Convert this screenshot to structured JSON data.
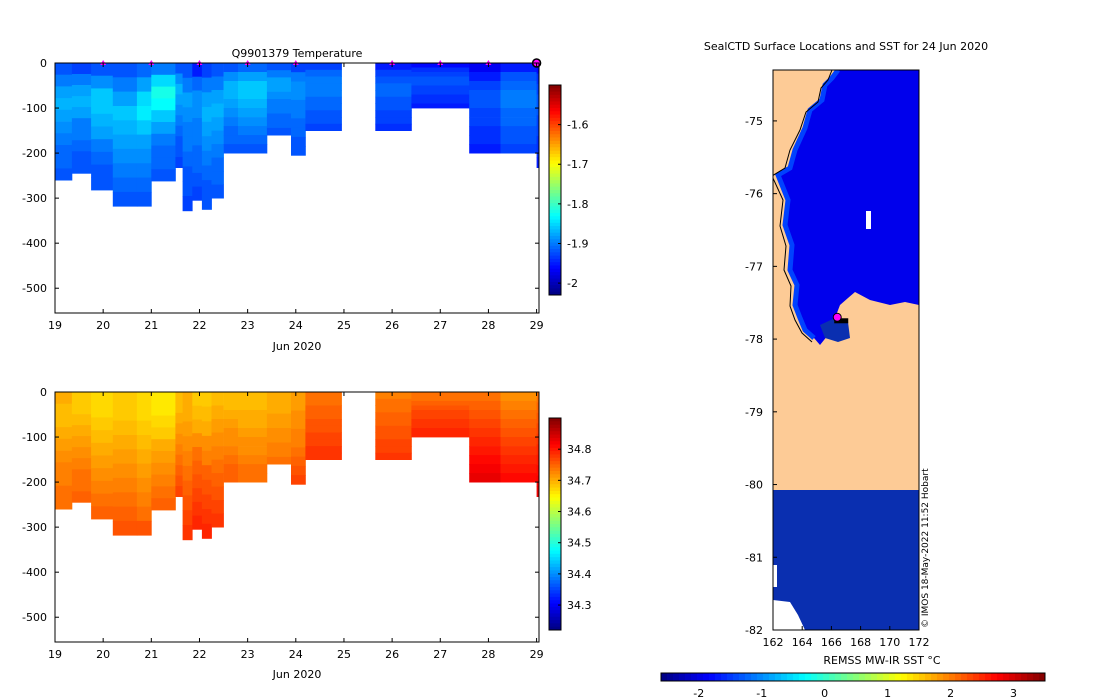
{
  "figure": {
    "credit": "© IMOS 18-May-2022 11:52 Hobart"
  },
  "colors": {
    "land": "#fdcb96",
    "ocean_deep": "#0a2fb0",
    "marker": "#ff00ff",
    "frame": "#000000"
  },
  "chart_data": [
    {
      "id": "temperature_section",
      "type": "heatmap",
      "title": "Q9901379  Temperature",
      "xlabel": "Jun 2020",
      "ylabel": "",
      "xlim": [
        19,
        29.05
      ],
      "ylim": [
        0,
        -555
      ],
      "x_ticks": [
        "19",
        "20",
        "21",
        "22",
        "23",
        "24",
        "25",
        "26",
        "27",
        "28",
        "29"
      ],
      "y_ticks": [
        0,
        -100,
        -200,
        -300,
        -400,
        -500
      ],
      "y_tick_labels": [
        "0",
        "-100",
        "-200",
        "-300",
        "-400",
        "-500"
      ],
      "colorbar": {
        "min": -2.03,
        "max": -1.5,
        "ticks": [
          -1.6,
          -1.7,
          -1.8,
          -1.9,
          -2.0
        ],
        "tick_labels": [
          "-1.6",
          "-1.7",
          "-1.8",
          "-1.9",
          "-2"
        ],
        "colormap": "jet"
      },
      "profile_markers_x": [
        20,
        21,
        22,
        23,
        24,
        26,
        27,
        28
      ],
      "latest_marker_x": 29,
      "profiles": [
        {
          "x0": 19.0,
          "x1": 19.35,
          "depth": -260,
          "values": [
            -1.92,
            -1.9,
            -1.88,
            -1.87,
            -1.88,
            -1.89,
            -1.9,
            -1.91,
            -1.91,
            -1.92
          ]
        },
        {
          "x0": 19.35,
          "x1": 19.75,
          "depth": -245,
          "values": [
            -1.93,
            -1.9,
            -1.88,
            -1.87,
            -1.88,
            -1.9,
            -1.9,
            -1.91,
            -1.92,
            -1.92
          ]
        },
        {
          "x0": 19.75,
          "x1": 20.2,
          "depth": -282,
          "values": [
            -1.92,
            -1.89,
            -1.86,
            -1.86,
            -1.87,
            -1.88,
            -1.9,
            -1.91,
            -1.92,
            -1.92
          ]
        },
        {
          "x0": 20.2,
          "x1": 20.7,
          "depth": -318,
          "values": [
            -1.92,
            -1.9,
            -1.88,
            -1.86,
            -1.87,
            -1.88,
            -1.89,
            -1.9,
            -1.91,
            -1.92
          ]
        },
        {
          "x0": 20.7,
          "x1": 21.0,
          "depth": -318,
          "values": [
            -1.91,
            -1.88,
            -1.85,
            -1.84,
            -1.86,
            -1.88,
            -1.89,
            -1.9,
            -1.91,
            -1.92
          ]
        },
        {
          "x0": 21.0,
          "x1": 21.5,
          "depth": -262,
          "values": [
            -1.9,
            -1.85,
            -1.82,
            -1.83,
            -1.86,
            -1.88,
            -1.9,
            -1.91,
            -1.91,
            -1.92
          ]
        },
        {
          "x0": 21.5,
          "x1": 21.65,
          "depth": -232,
          "values": [
            -1.92,
            -1.89,
            -1.87,
            -1.88,
            -1.89,
            -1.9,
            -1.91,
            -1.92,
            -1.92,
            -1.93
          ]
        },
        {
          "x0": 21.65,
          "x1": 21.85,
          "depth": -328,
          "values": [
            -1.92,
            -1.9,
            -1.88,
            -1.89,
            -1.9,
            -1.9,
            -1.91,
            -1.92,
            -1.92,
            -1.93
          ]
        },
        {
          "x0": 21.85,
          "x1": 22.05,
          "depth": -305,
          "values": [
            -1.95,
            -1.91,
            -1.89,
            -1.89,
            -1.9,
            -1.9,
            -1.91,
            -1.91,
            -1.92,
            -1.93
          ]
        },
        {
          "x0": 22.05,
          "x1": 22.25,
          "depth": -325,
          "values": [
            -1.93,
            -1.9,
            -1.88,
            -1.87,
            -1.88,
            -1.89,
            -1.9,
            -1.91,
            -1.92,
            -1.92
          ]
        },
        {
          "x0": 22.25,
          "x1": 22.5,
          "depth": -300,
          "values": [
            -1.92,
            -1.9,
            -1.88,
            -1.87,
            -1.88,
            -1.89,
            -1.9,
            -1.91,
            -1.91,
            -1.92
          ]
        },
        {
          "x0": 22.5,
          "x1": 22.8,
          "depth": -200,
          "values": [
            -1.92,
            -1.89,
            -1.87,
            -1.87,
            -1.88,
            -1.89,
            -1.9,
            -1.91,
            -1.91,
            -1.92
          ]
        },
        {
          "x0": 22.8,
          "x1": 23.4,
          "depth": -200,
          "values": [
            -1.91,
            -1.88,
            -1.86,
            -1.86,
            -1.87,
            -1.88,
            -1.89,
            -1.9,
            -1.91,
            -1.92
          ]
        },
        {
          "x0": 23.4,
          "x1": 23.9,
          "depth": -160,
          "values": [
            -1.92,
            -1.9,
            -1.88,
            -1.88,
            -1.89,
            -1.9,
            -1.9,
            -1.91,
            -1.91,
            -1.92
          ]
        },
        {
          "x0": 23.9,
          "x1": 24.2,
          "depth": -205,
          "values": [
            -1.93,
            -1.9,
            -1.89,
            -1.89,
            -1.9,
            -1.9,
            -1.91,
            -1.91,
            -1.92,
            -1.92
          ]
        },
        {
          "x0": 24.2,
          "x1": 24.95,
          "depth": -150,
          "values": [
            -1.93,
            -1.91,
            -1.9,
            -1.9,
            -1.9,
            -1.91,
            -1.91,
            -1.92,
            -1.92,
            -1.93
          ]
        },
        {
          "x0": 25.65,
          "x1": 26.4,
          "depth": -150,
          "values": [
            -1.95,
            -1.93,
            -1.92,
            -1.91,
            -1.91,
            -1.92,
            -1.92,
            -1.93,
            -1.93,
            -1.94
          ]
        },
        {
          "x0": 26.4,
          "x1": 27.6,
          "depth": -100,
          "values": [
            -1.96,
            -1.94,
            -1.93,
            -1.92,
            -1.92,
            -1.93,
            -1.93,
            -1.94,
            -1.94,
            -1.95
          ]
        },
        {
          "x0": 27.6,
          "x1": 28.25,
          "depth": -200,
          "values": [
            -1.97,
            -1.95,
            -1.93,
            -1.92,
            -1.92,
            -1.93,
            -1.93,
            -1.94,
            -1.94,
            -1.95
          ]
        },
        {
          "x0": 28.25,
          "x1": 29.0,
          "depth": -200,
          "values": [
            -1.95,
            -1.92,
            -1.91,
            -1.9,
            -1.9,
            -1.91,
            -1.91,
            -1.92,
            -1.92,
            -1.93
          ]
        },
        {
          "x0": 29.0,
          "x1": 29.05,
          "depth": -232,
          "values": [
            -1.96,
            -1.94,
            -1.93,
            -1.92,
            -1.92,
            -1.93,
            -1.93,
            -1.94,
            -1.94,
            -1.95
          ]
        }
      ]
    },
    {
      "id": "salinity_section",
      "type": "heatmap",
      "title": "",
      "xlabel": "Jun 2020",
      "ylabel": "",
      "xlim": [
        19,
        29.05
      ],
      "ylim": [
        0,
        -555
      ],
      "x_ticks": [
        "19",
        "20",
        "21",
        "22",
        "23",
        "24",
        "25",
        "26",
        "27",
        "28",
        "29"
      ],
      "y_ticks": [
        0,
        -100,
        -200,
        -300,
        -400,
        -500
      ],
      "y_tick_labels": [
        "0",
        "-100",
        "-200",
        "-300",
        "-400",
        "-500"
      ],
      "colorbar": {
        "min": 34.22,
        "max": 34.9,
        "ticks": [
          34.8,
          34.7,
          34.6,
          34.5,
          34.4,
          34.3
        ],
        "tick_labels": [
          "34.8",
          "34.7",
          "34.6",
          "34.5",
          "34.4",
          "34.3"
        ],
        "colormap": "jet"
      },
      "profiles": [
        {
          "x0": 19.0,
          "x1": 19.35,
          "depth": -260,
          "values": [
            34.7,
            34.69,
            34.69,
            34.7,
            34.71,
            34.72,
            34.73,
            34.73,
            34.74,
            34.74
          ]
        },
        {
          "x0": 19.35,
          "x1": 19.75,
          "depth": -245,
          "values": [
            34.68,
            34.68,
            34.69,
            34.7,
            34.71,
            34.72,
            34.73,
            34.74,
            34.74,
            34.75
          ]
        },
        {
          "x0": 19.75,
          "x1": 20.2,
          "depth": -282,
          "values": [
            34.67,
            34.67,
            34.68,
            34.69,
            34.7,
            34.71,
            34.72,
            34.73,
            34.74,
            34.75
          ]
        },
        {
          "x0": 20.2,
          "x1": 20.7,
          "depth": -318,
          "values": [
            34.68,
            34.68,
            34.69,
            34.7,
            34.71,
            34.72,
            34.73,
            34.74,
            34.75,
            34.76
          ]
        },
        {
          "x0": 20.7,
          "x1": 21.0,
          "depth": -318,
          "values": [
            34.67,
            34.67,
            34.68,
            34.69,
            34.7,
            34.71,
            34.72,
            34.73,
            34.74,
            34.76
          ]
        },
        {
          "x0": 21.0,
          "x1": 21.5,
          "depth": -262,
          "values": [
            34.66,
            34.66,
            34.67,
            34.68,
            34.7,
            34.71,
            34.72,
            34.73,
            34.74,
            34.75
          ]
        },
        {
          "x0": 21.5,
          "x1": 21.65,
          "depth": -232,
          "values": [
            34.69,
            34.69,
            34.7,
            34.71,
            34.72,
            34.73,
            34.74,
            34.75,
            34.76,
            34.77
          ]
        },
        {
          "x0": 21.65,
          "x1": 21.85,
          "depth": -328,
          "values": [
            34.7,
            34.7,
            34.71,
            34.72,
            34.73,
            34.74,
            34.75,
            34.76,
            34.77,
            34.78
          ]
        },
        {
          "x0": 21.85,
          "x1": 22.05,
          "depth": -305,
          "values": [
            34.68,
            34.69,
            34.7,
            34.72,
            34.74,
            34.75,
            34.76,
            34.77,
            34.78,
            34.79
          ]
        },
        {
          "x0": 22.05,
          "x1": 22.25,
          "depth": -325,
          "values": [
            34.68,
            34.69,
            34.7,
            34.72,
            34.73,
            34.75,
            34.76,
            34.77,
            34.78,
            34.79
          ]
        },
        {
          "x0": 22.25,
          "x1": 22.5,
          "depth": -300,
          "values": [
            34.69,
            34.7,
            34.71,
            34.72,
            34.73,
            34.74,
            34.75,
            34.76,
            34.77,
            34.78
          ]
        },
        {
          "x0": 22.5,
          "x1": 22.8,
          "depth": -200,
          "values": [
            34.69,
            34.69,
            34.7,
            34.71,
            34.72,
            34.72,
            34.73,
            34.74,
            34.75,
            34.75
          ]
        },
        {
          "x0": 22.8,
          "x1": 23.4,
          "depth": -200,
          "values": [
            34.69,
            34.69,
            34.7,
            34.7,
            34.71,
            34.72,
            34.72,
            34.73,
            34.74,
            34.74
          ]
        },
        {
          "x0": 23.4,
          "x1": 23.9,
          "depth": -160,
          "values": [
            34.7,
            34.7,
            34.7,
            34.71,
            34.71,
            34.72,
            34.72,
            34.73,
            34.73,
            34.74
          ]
        },
        {
          "x0": 23.9,
          "x1": 24.2,
          "depth": -205,
          "values": [
            34.71,
            34.71,
            34.72,
            34.72,
            34.73,
            34.73,
            34.74,
            34.75,
            34.76,
            34.77
          ]
        },
        {
          "x0": 24.2,
          "x1": 24.95,
          "depth": -150,
          "values": [
            34.74,
            34.74,
            34.75,
            34.75,
            34.76,
            34.76,
            34.77,
            34.77,
            34.78,
            34.78
          ]
        },
        {
          "x0": 25.65,
          "x1": 26.4,
          "depth": -150,
          "values": [
            34.73,
            34.74,
            34.74,
            34.75,
            34.75,
            34.76,
            34.76,
            34.77,
            34.77,
            34.78
          ]
        },
        {
          "x0": 26.4,
          "x1": 27.6,
          "depth": -100,
          "values": [
            34.74,
            34.74,
            34.75,
            34.76,
            34.77,
            34.77,
            34.78,
            34.78,
            34.79,
            34.79
          ]
        },
        {
          "x0": 27.6,
          "x1": 28.25,
          "depth": -200,
          "values": [
            34.74,
            34.75,
            34.76,
            34.77,
            34.78,
            34.79,
            34.8,
            34.81,
            34.82,
            34.83
          ]
        },
        {
          "x0": 28.25,
          "x1": 29.0,
          "depth": -200,
          "values": [
            34.72,
            34.73,
            34.74,
            34.75,
            34.76,
            34.77,
            34.78,
            34.79,
            34.8,
            34.81
          ]
        },
        {
          "x0": 29.0,
          "x1": 29.05,
          "depth": -232,
          "values": [
            34.74,
            34.75,
            34.76,
            34.77,
            34.78,
            34.79,
            34.8,
            34.81,
            34.82,
            34.83
          ]
        }
      ]
    },
    {
      "id": "sst_map",
      "type": "heatmap",
      "title": "SealCTD Surface Locations and SST for 24 Jun 2020",
      "xlabel": "",
      "ylabel": "",
      "xlim": [
        162,
        172
      ],
      "ylim": [
        -82,
        -74.3
      ],
      "x_ticks": [
        "162",
        "164",
        "166",
        "168",
        "170",
        "172"
      ],
      "y_ticks": [
        "-75",
        "-76",
        "-77",
        "-78",
        "-79",
        "-80",
        "-81",
        "-82"
      ],
      "colorbar": {
        "label": "REMSS MW-IR SST °C",
        "min": -2.6,
        "max": 3.5,
        "ticks": [
          "-2",
          "-1",
          "0",
          "1",
          "2",
          "3"
        ],
        "colormap": "jet"
      },
      "ocean_sst": -1.95,
      "coastal_sst": -1.45,
      "seal_position": {
        "lon": 166.4,
        "lat": -77.7
      }
    }
  ]
}
